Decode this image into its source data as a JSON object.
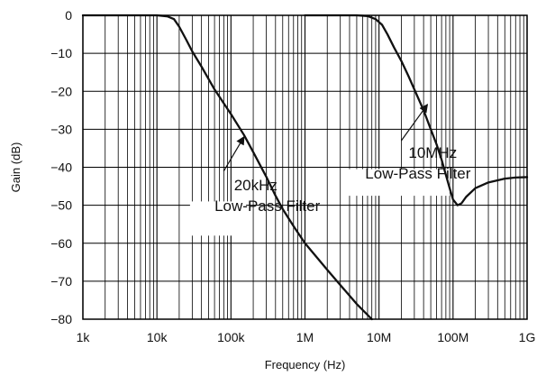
{
  "chart_data": {
    "type": "line",
    "title": "",
    "xlabel": "Frequency (Hz)",
    "ylabel": "Gain (dB)",
    "xscale": "log",
    "xlim": [
      1000,
      1000000000
    ],
    "ylim": [
      -80,
      0
    ],
    "grid": true,
    "grid_minor_x": true,
    "x_ticks": [
      {
        "value": 1000,
        "label": "1k"
      },
      {
        "value": 10000,
        "label": "10k"
      },
      {
        "value": 100000,
        "label": "100k"
      },
      {
        "value": 1000000,
        "label": "1M"
      },
      {
        "value": 10000000,
        "label": "10M"
      },
      {
        "value": 100000000,
        "label": "100M"
      },
      {
        "value": 1000000000,
        "label": "1G"
      }
    ],
    "y_ticks": [
      {
        "value": 0,
        "label": "0"
      },
      {
        "value": -10,
        "label": "−10"
      },
      {
        "value": -20,
        "label": "−20"
      },
      {
        "value": -30,
        "label": "−30"
      },
      {
        "value": -40,
        "label": "−40"
      },
      {
        "value": -50,
        "label": "−50"
      },
      {
        "value": -60,
        "label": "−60"
      },
      {
        "value": -70,
        "label": "−70"
      },
      {
        "value": -80,
        "label": "−80"
      }
    ],
    "series": [
      {
        "color": "#111111",
        "points": [
          [
            1000,
            0
          ],
          [
            5000,
            0
          ],
          [
            10000,
            0
          ],
          [
            14000,
            -0.3
          ],
          [
            17000,
            -1
          ],
          [
            20000,
            -3
          ],
          [
            25000,
            -6.5
          ],
          [
            30000,
            -9.5
          ],
          [
            40000,
            -13.5
          ],
          [
            60000,
            -19.5
          ],
          [
            100000,
            -26
          ],
          [
            150000,
            -31.5
          ],
          [
            200000,
            -36
          ],
          [
            300000,
            -42.5
          ],
          [
            400000,
            -47.5
          ],
          [
            500000,
            -51
          ],
          [
            700000,
            -55.5
          ],
          [
            1000000,
            -60
          ],
          [
            2000000,
            -67
          ],
          [
            3000000,
            -71
          ],
          [
            5000000,
            -76
          ],
          [
            8000000,
            -80
          ]
        ]
      },
      {
        "color": "#111111",
        "points": [
          [
            1000000,
            0
          ],
          [
            5000000,
            0
          ],
          [
            7000000,
            -0.2
          ],
          [
            9000000,
            -1
          ],
          [
            11000000,
            -2.5
          ],
          [
            13000000,
            -5
          ],
          [
            16000000,
            -8.5
          ],
          [
            20000000,
            -12
          ],
          [
            25000000,
            -16
          ],
          [
            30000000,
            -19.5
          ],
          [
            40000000,
            -25
          ],
          [
            50000000,
            -30
          ],
          [
            60000000,
            -34
          ],
          [
            70000000,
            -38
          ],
          [
            80000000,
            -42
          ],
          [
            90000000,
            -45.5
          ],
          [
            100000000,
            -48.5
          ],
          [
            115000000,
            -50
          ],
          [
            130000000,
            -49.5
          ],
          [
            150000000,
            -47.8
          ],
          [
            200000000,
            -45.5
          ],
          [
            300000000,
            -44
          ],
          [
            500000000,
            -43
          ],
          [
            700000000,
            -42.7
          ],
          [
            1000000000,
            -42.6
          ]
        ]
      }
    ],
    "annotations": [
      {
        "lines": [
          "20kHz",
          "Low-Pass Filter"
        ],
        "arrow_tail": [
          80000,
          -41
        ],
        "arrow_head": [
          150000,
          -32
        ],
        "text_anchor_point": [
          112000,
          -45.5
        ],
        "line_anchors": [
          110000,
          60000
        ],
        "line_ys": [
          -46,
          -51.5
        ],
        "box": [
          [
            28000,
            -49
          ],
          [
            160000,
            -58
          ]
        ]
      },
      {
        "lines": [
          "10MHz",
          "Low-Pass Filter"
        ],
        "arrow_tail": [
          20000000,
          -33
        ],
        "arrow_head": [
          45000000,
          -23.5
        ],
        "line_anchors": [
          25000000,
          6500000
        ],
        "line_ys": [
          -37.5,
          -43
        ],
        "box": [
          [
            3500000,
            -40.5
          ],
          [
            90000000,
            -47.5
          ]
        ]
      }
    ]
  }
}
